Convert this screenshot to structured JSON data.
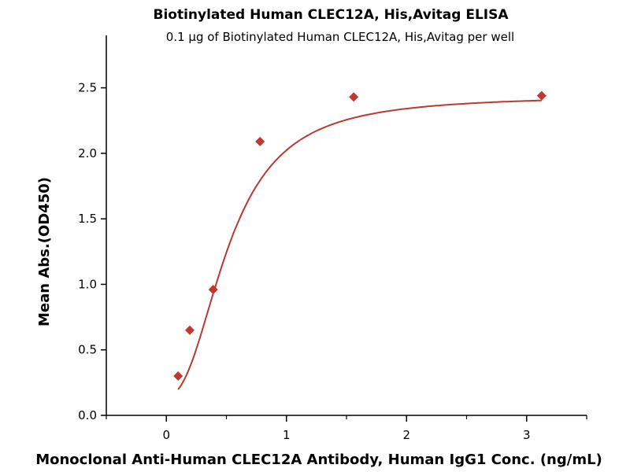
{
  "chart_data": {
    "type": "scatter",
    "title": "Biotinylated Human CLEC12A, His,Avitag ELISA",
    "subtitle": "0.1 μg of Biotinylated Human CLEC12A, His,Avitag per well",
    "xlabel": "Monoclonal Anti-Human CLEC12A Antibody, Human IgG1 Conc. (ng/mL)",
    "ylabel": "Mean Abs.(OD450)",
    "xlim": [
      -0.5,
      3.5
    ],
    "ylim": [
      0,
      2.9
    ],
    "xticks": [
      "0",
      "1",
      "2",
      "3"
    ],
    "yticks": [
      "0.0",
      "0.5",
      "1.0",
      "1.5",
      "2.0",
      "2.5"
    ],
    "grid": false,
    "color": "#c0392f",
    "x": [
      0.098,
      0.195,
      0.39,
      0.78,
      1.56,
      3.125
    ],
    "y": [
      0.3,
      0.65,
      0.96,
      2.09,
      2.43,
      2.44
    ],
    "fit": {
      "model": "4PL",
      "bottom": 0.15,
      "top": 2.44,
      "ec50": 0.52,
      "hill": 2.3
    }
  }
}
